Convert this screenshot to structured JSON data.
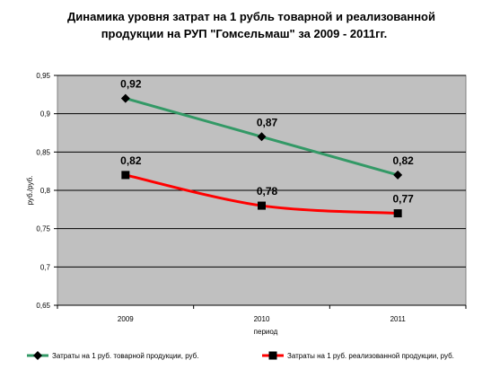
{
  "chart_data": {
    "type": "line",
    "title_line1": "Динамика уровня затрат на 1 рубль товарной и реализованной",
    "title_line2": "продукции на РУП \"Гомсельмаш\" за 2009 - 2011гг.",
    "xlabel": "период",
    "ylabel": "руб./руб.",
    "categories": [
      "2009",
      "2010",
      "2011"
    ],
    "ylim": [
      0.65,
      0.95
    ],
    "yticks": [
      0.65,
      0.7,
      0.75,
      0.8,
      0.85,
      0.9,
      0.95
    ],
    "ytick_labels": [
      "0,65",
      "0,7",
      "0,75",
      "0,8",
      "0,85",
      "0,9",
      "0,95"
    ],
    "grid": true,
    "plot_background": "#c0c0c0",
    "legend_position": "bottom",
    "series": [
      {
        "name": "Затраты на 1 руб. товарной продукции, руб.",
        "values": [
          0.92,
          0.87,
          0.82
        ],
        "labels": [
          "0,92",
          "0,87",
          "0,82"
        ],
        "color": "#339966",
        "marker": "diamond",
        "smooth": false
      },
      {
        "name": "Затраты на 1 руб. реализованной продукции, руб.",
        "values": [
          0.82,
          0.78,
          0.77
        ],
        "labels": [
          "0,82",
          "0,78",
          "0,77"
        ],
        "color": "#ff0000",
        "marker": "square",
        "smooth": true
      }
    ]
  }
}
